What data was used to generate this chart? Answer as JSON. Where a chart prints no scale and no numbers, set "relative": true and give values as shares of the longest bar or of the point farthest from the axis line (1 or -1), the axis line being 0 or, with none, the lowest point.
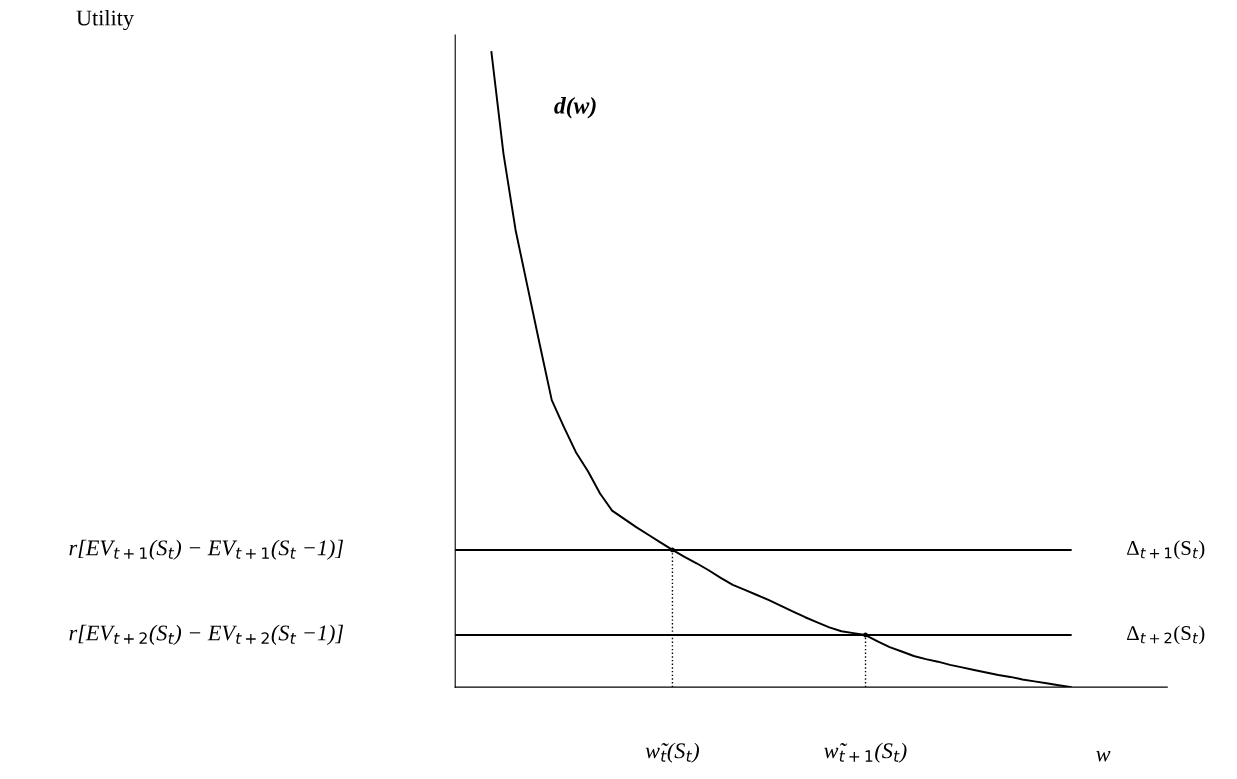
{
  "chart_data": {
    "type": "line",
    "relative": true,
    "xlabel": "w",
    "tick_labels": "x",
    "categories": [
      null,
      null,
      null,
      null,
      null,
      null,
      null,
      null,
      null,
      null,
      null,
      null,
      null,
      null,
      null,
      null,
      null,
      null,
      "w̃$_{t}$(S$_{t}$)",
      null,
      null,
      null,
      null,
      null,
      null,
      null,
      null,
      null,
      null,
      null,
      null,
      null,
      null,
      null,
      "w̃$_{t+1}$(S$_{t}$)",
      null,
      null,
      null,
      null,
      null,
      null,
      null,
      null,
      null,
      null,
      null,
      null,
      null,
      null,
      null,
      null,
      null,
      null,
      null,
      null,
      null,
      null,
      null,
      null,
      null
    ],
    "series": [
      {
        "color": "#000000",
        "values": [
          null,
          null,
          null,
          1.0,
          0.84,
          0.72,
          0.63,
          0.54,
          0.452,
          0.41,
          0.37,
          0.34,
          0.305,
          0.278,
          0.265,
          0.252,
          0.24,
          0.228,
          0.216,
          0.205,
          0.195,
          0.184,
          0.172,
          0.161,
          0.153,
          0.145,
          0.137,
          0.128,
          0.119,
          0.11,
          0.102,
          0.094,
          0.088,
          0.085,
          0.082,
          0.072,
          0.063,
          0.056,
          0.049,
          0.044,
          0.04,
          0.035,
          0.031,
          0.027,
          0.023,
          0.019,
          0.016,
          0.012,
          0.009,
          0.006,
          0.003,
          0,
          null,
          null,
          null,
          null,
          null,
          null,
          null,
          null
        ]
      },
      {
        "name": "Δ$_{t+1}$(S$_{t}$)",
        "color": "#000000",
        "values": [
          0.216,
          0.216,
          0.216,
          0.216,
          0.216,
          0.216,
          0.216,
          0.216,
          0.216,
          0.216,
          0.216,
          0.216,
          0.216,
          0.216,
          0.216,
          0.216,
          0.216,
          0.216,
          0.216,
          0.216,
          0.216,
          0.216,
          0.216,
          0.216,
          0.216,
          0.216,
          0.216,
          0.216,
          0.216,
          0.216,
          0.216,
          0.216,
          0.216,
          0.216,
          0.216,
          0.216,
          0.216,
          0.216,
          0.216,
          0.216,
          0.216,
          0.216,
          0.216,
          0.216,
          0.216,
          0.216,
          0.216,
          0.216,
          0.216,
          0.216,
          0.216,
          0.216,
          null,
          null,
          null,
          null,
          null,
          null,
          null,
          null
        ]
      },
      {
        "name": "Δ$_{t+2}$(S$_{t}$)",
        "color": "#000000",
        "values": [
          0.082,
          0.082,
          0.082,
          0.082,
          0.082,
          0.082,
          0.082,
          0.082,
          0.082,
          0.082,
          0.082,
          0.082,
          0.082,
          0.082,
          0.082,
          0.082,
          0.082,
          0.082,
          0.082,
          0.082,
          0.082,
          0.082,
          0.082,
          0.082,
          0.082,
          0.082,
          0.082,
          0.082,
          0.082,
          0.082,
          0.082,
          0.082,
          0.082,
          0.082,
          0.082,
          0.082,
          0.082,
          0.082,
          0.082,
          0.082,
          0.082,
          0.082,
          0.082,
          0.082,
          0.082,
          0.082,
          0.082,
          0.082,
          0.082,
          0.082,
          0.082,
          0.082,
          null,
          null,
          null,
          null,
          null,
          null,
          null,
          null
        ]
      },
      {
        "type": "lollipop",
        "color": "#000000",
        "line_style": "dotted",
        "values": [
          null,
          null,
          null,
          null,
          null,
          null,
          null,
          null,
          null,
          null,
          null,
          null,
          null,
          null,
          null,
          null,
          null,
          null,
          0.216,
          null,
          null,
          null,
          null,
          null,
          null,
          null,
          null,
          null,
          null,
          null,
          null,
          null,
          null,
          null,
          0.082,
          null,
          null,
          null,
          null,
          null,
          null,
          null,
          null,
          null,
          null,
          null,
          null,
          null,
          null,
          null,
          null,
          null,
          null,
          null,
          null,
          null,
          null,
          null,
          null,
          null
        ]
      }
    ],
    "annotations": [
      "d(w)",
      "r[EV$_{t+1}$(S$_{t}$) − EV$_{t+1}$(S$_{t}$ −1)]",
      "r[EV$_{t+2}$(S$_{t}$) − EV$_{t+2}$(S$_{t}$ −1)]",
      "Utility"
    ]
  }
}
